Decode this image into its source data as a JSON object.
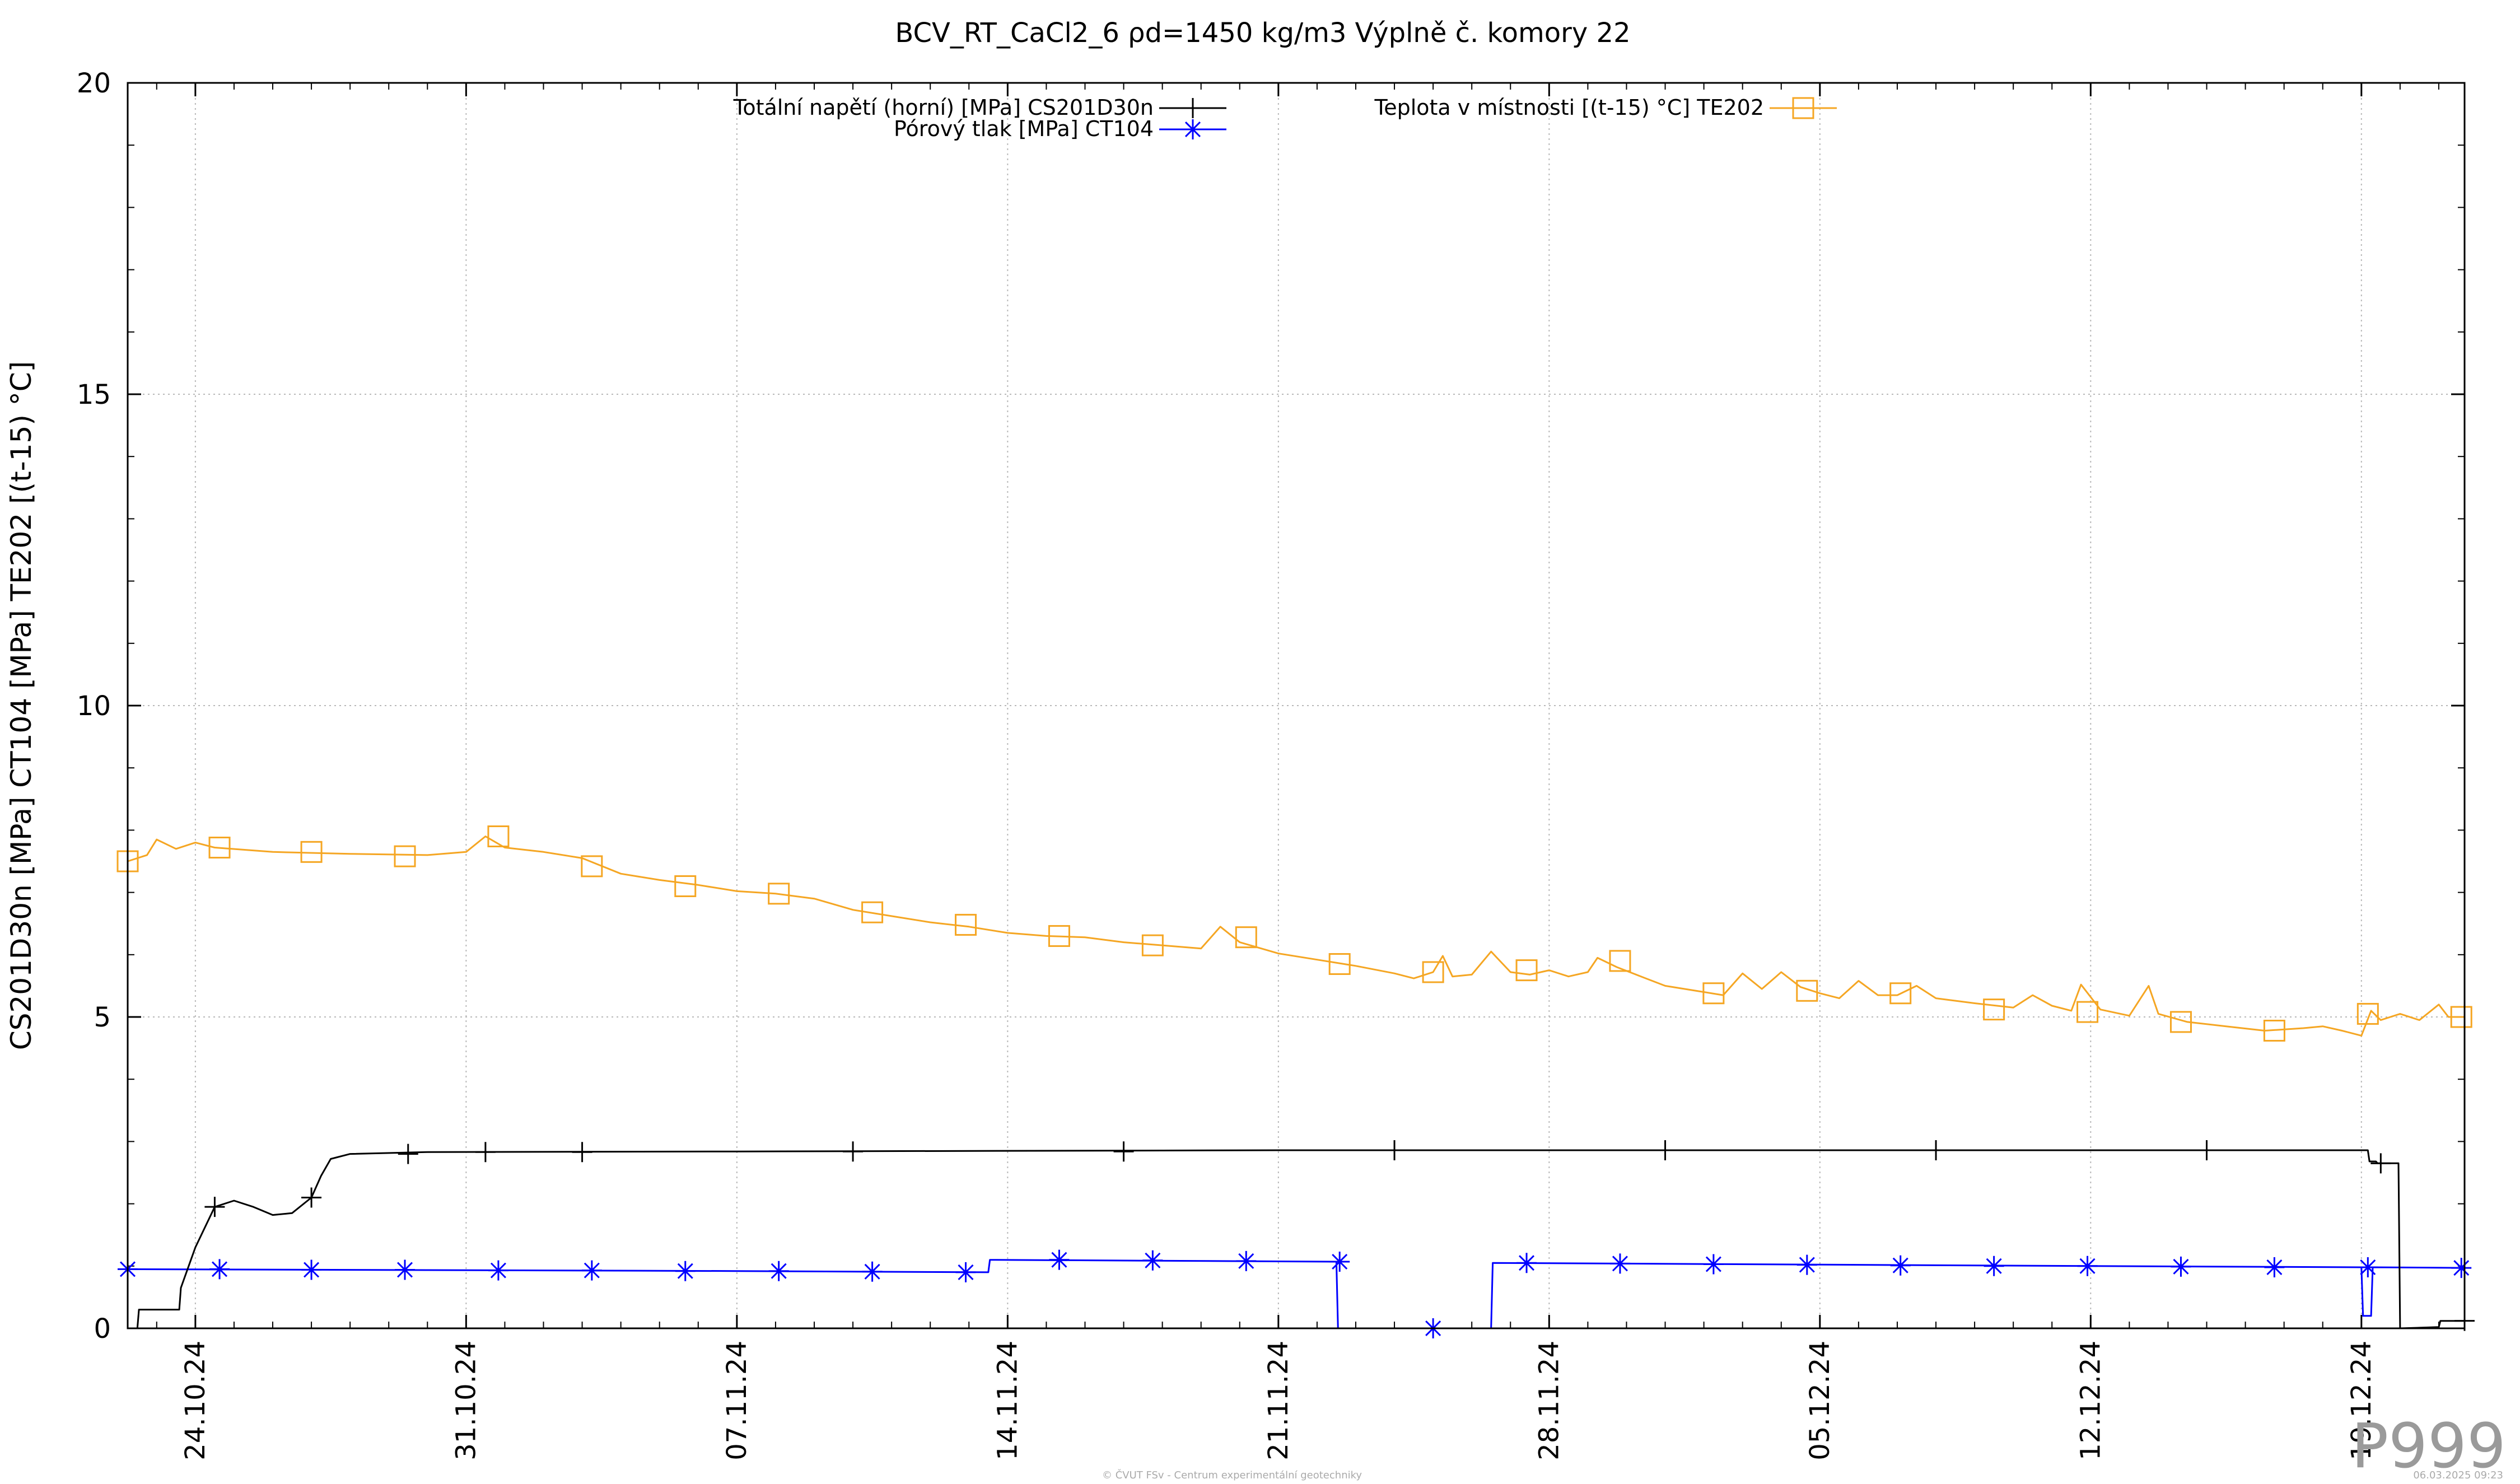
{
  "chart_data": {
    "type": "line",
    "title": "BCV_RT_CaCl2_6 ρd=1450 kg/m3 Výplně č. komory 22",
    "ylabel": "CS201D30n [MPa] CT104 [MPa] TE202 [(t-15) °C]",
    "xlabel": "",
    "ylim": [
      0,
      20
    ],
    "y_ticks": [
      0,
      5,
      10,
      15,
      20
    ],
    "x_range": [
      "2024-10-22T06:00",
      "2024-12-21T16:00"
    ],
    "x_ticks": [
      "24.10.24",
      "31.10.24",
      "07.11.24",
      "14.11.24",
      "21.11.24",
      "28.11.24",
      "05.12.24",
      "12.12.24",
      "19.12.24"
    ],
    "x_tick_dates": [
      "2024-10-24",
      "2024-10-31",
      "2024-11-07",
      "2024-11-14",
      "2024-11-21",
      "2024-11-28",
      "2024-12-05",
      "2024-12-12",
      "2024-12-19"
    ],
    "grid": true,
    "legend_position": "top",
    "series": [
      {
        "name": "Totální napětí (horní) [MPa] CS201D30n",
        "color": "#000000",
        "marker": "plus",
        "points": [
          [
            "2024-10-22T06:00",
            0.0
          ],
          [
            "2024-10-22T12:00",
            0.0
          ],
          [
            "2024-10-22T13:00",
            0.3
          ],
          [
            "2024-10-23T14:00",
            0.3
          ],
          [
            "2024-10-23T15:00",
            0.65
          ],
          [
            "2024-10-24T00:00",
            1.3
          ],
          [
            "2024-10-24T12:00",
            1.95
          ],
          [
            "2024-10-25T00:00",
            2.05
          ],
          [
            "2024-10-25T12:00",
            1.95
          ],
          [
            "2024-10-26T00:00",
            1.82
          ],
          [
            "2024-10-26T12:00",
            1.85
          ],
          [
            "2024-10-27T00:00",
            2.1
          ],
          [
            "2024-10-27T06:00",
            2.45
          ],
          [
            "2024-10-27T12:00",
            2.72
          ],
          [
            "2024-10-28T00:00",
            2.8
          ],
          [
            "2024-10-30T00:00",
            2.83
          ],
          [
            "2024-11-07T00:00",
            2.84
          ],
          [
            "2024-11-21T00:00",
            2.86
          ],
          [
            "2024-11-28T00:00",
            2.86
          ],
          [
            "2024-12-12T00:00",
            2.86
          ],
          [
            "2024-12-19T04:00",
            2.86
          ],
          [
            "2024-12-19T05:00",
            2.68
          ],
          [
            "2024-12-19T09:00",
            2.68
          ],
          [
            "2024-12-19T10:00",
            2.65
          ],
          [
            "2024-12-19T23:00",
            2.65
          ],
          [
            "2024-12-20T00:00",
            0.0
          ],
          [
            "2024-12-21T00:00",
            0.02
          ],
          [
            "2024-12-21T01:00",
            0.12
          ],
          [
            "2024-12-21T16:00",
            0.12
          ]
        ],
        "marker_dates": [
          "2024-10-24T12:00",
          "2024-10-27T00:00",
          "2024-10-29T12:00",
          "2024-10-31T12:00",
          "2024-11-03T00:00",
          "2024-11-10T00:00",
          "2024-11-17T00:00",
          "2024-11-24T00:00",
          "2024-12-01T00:00",
          "2024-12-08T00:00",
          "2024-12-15T00:00",
          "2024-12-19T12:00",
          "2024-12-21T16:00"
        ]
      },
      {
        "name": "Pórový tlak [MPa] CT104",
        "color": "#0000ff",
        "marker": "star",
        "points": [
          [
            "2024-10-22T06:00",
            0.95
          ],
          [
            "2024-11-07T00:00",
            0.92
          ],
          [
            "2024-11-13T12:00",
            0.9
          ],
          [
            "2024-11-13T13:00",
            1.1
          ],
          [
            "2024-11-22T12:00",
            1.07
          ],
          [
            "2024-11-22T13:00",
            0.0
          ],
          [
            "2024-11-26T12:00",
            0.0
          ],
          [
            "2024-11-26T13:00",
            1.05
          ],
          [
            "2024-12-12T00:00",
            1.0
          ],
          [
            "2024-12-19T00:00",
            0.98
          ],
          [
            "2024-12-19T01:00",
            0.2
          ],
          [
            "2024-12-19T06:00",
            0.2
          ],
          [
            "2024-12-19T07:00",
            0.98
          ],
          [
            "2024-12-21T16:00",
            0.97
          ]
        ],
        "markers": [
          [
            "2024-10-22T06:00",
            0.95
          ],
          [
            "2024-10-24T15:00",
            0.95
          ],
          [
            "2024-10-27T00:00",
            0.94
          ],
          [
            "2024-10-29T10:00",
            0.94
          ],
          [
            "2024-10-31T20:00",
            0.93
          ],
          [
            "2024-11-03T06:00",
            0.93
          ],
          [
            "2024-11-05T16:00",
            0.92
          ],
          [
            "2024-11-08T02:00",
            0.92
          ],
          [
            "2024-11-10T12:00",
            0.91
          ],
          [
            "2024-11-12T22:00",
            0.9
          ],
          [
            "2024-11-15T08:00",
            1.1
          ],
          [
            "2024-11-17T18:00",
            1.09
          ],
          [
            "2024-11-20T04:00",
            1.08
          ],
          [
            "2024-11-22T14:00",
            1.07
          ],
          [
            "2024-11-25T00:00",
            0.0
          ],
          [
            "2024-11-27T10:00",
            1.05
          ],
          [
            "2024-11-29T20:00",
            1.04
          ],
          [
            "2024-12-02T06:00",
            1.03
          ],
          [
            "2024-12-04T16:00",
            1.02
          ],
          [
            "2024-12-07T02:00",
            1.01
          ],
          [
            "2024-12-09T12:00",
            1.0
          ],
          [
            "2024-12-11T22:00",
            1.0
          ],
          [
            "2024-12-14T08:00",
            0.99
          ],
          [
            "2024-12-16T18:00",
            0.98
          ],
          [
            "2024-12-19T04:00",
            0.98
          ],
          [
            "2024-12-21T14:00",
            0.97
          ]
        ]
      },
      {
        "name": "Teplota v místnosti [(t-15) °C] TE202",
        "color": "#f5a623",
        "marker": "square",
        "points": [
          [
            "2024-10-22T06:00",
            7.5
          ],
          [
            "2024-10-22T18:00",
            7.6
          ],
          [
            "2024-10-23T00:00",
            7.85
          ],
          [
            "2024-10-23T12:00",
            7.7
          ],
          [
            "2024-10-24T00:00",
            7.8
          ],
          [
            "2024-10-24T12:00",
            7.72
          ],
          [
            "2024-10-26T00:00",
            7.65
          ],
          [
            "2024-10-28T00:00",
            7.62
          ],
          [
            "2024-10-30T00:00",
            7.6
          ],
          [
            "2024-10-31T00:00",
            7.65
          ],
          [
            "2024-10-31T12:00",
            7.9
          ],
          [
            "2024-11-01T00:00",
            7.72
          ],
          [
            "2024-11-02T00:00",
            7.65
          ],
          [
            "2024-11-03T00:00",
            7.55
          ],
          [
            "2024-11-04T00:00",
            7.3
          ],
          [
            "2024-11-05T00:00",
            7.2
          ],
          [
            "2024-11-06T00:00",
            7.12
          ],
          [
            "2024-11-07T00:00",
            7.02
          ],
          [
            "2024-11-08T00:00",
            6.98
          ],
          [
            "2024-11-09T00:00",
            6.9
          ],
          [
            "2024-11-10T00:00",
            6.72
          ],
          [
            "2024-11-11T00:00",
            6.62
          ],
          [
            "2024-11-12T00:00",
            6.52
          ],
          [
            "2024-11-13T00:00",
            6.45
          ],
          [
            "2024-11-14T00:00",
            6.35
          ],
          [
            "2024-11-15T00:00",
            6.3
          ],
          [
            "2024-11-16T00:00",
            6.28
          ],
          [
            "2024-11-17T00:00",
            6.2
          ],
          [
            "2024-11-18T00:00",
            6.15
          ],
          [
            "2024-11-19T00:00",
            6.1
          ],
          [
            "2024-11-19T12:00",
            6.45
          ],
          [
            "2024-11-20T00:00",
            6.2
          ],
          [
            "2024-11-21T00:00",
            6.02
          ],
          [
            "2024-11-22T00:00",
            5.92
          ],
          [
            "2024-11-23T00:00",
            5.82
          ],
          [
            "2024-11-24T00:00",
            5.7
          ],
          [
            "2024-11-24T12:00",
            5.62
          ],
          [
            "2024-11-25T00:00",
            5.72
          ],
          [
            "2024-11-25T06:00",
            5.98
          ],
          [
            "2024-11-25T12:00",
            5.65
          ],
          [
            "2024-11-26T00:00",
            5.68
          ],
          [
            "2024-11-26T12:00",
            6.05
          ],
          [
            "2024-11-27T00:00",
            5.72
          ],
          [
            "2024-11-27T12:00",
            5.68
          ],
          [
            "2024-11-28T00:00",
            5.75
          ],
          [
            "2024-11-28T12:00",
            5.65
          ],
          [
            "2024-11-29T00:00",
            5.72
          ],
          [
            "2024-11-29T06:00",
            5.95
          ],
          [
            "2024-11-29T18:00",
            5.8
          ],
          [
            "2024-11-30T12:00",
            5.62
          ],
          [
            "2024-12-01T00:00",
            5.5
          ],
          [
            "2024-12-02T00:00",
            5.4
          ],
          [
            "2024-12-02T12:00",
            5.35
          ],
          [
            "2024-12-03T00:00",
            5.7
          ],
          [
            "2024-12-03T12:00",
            5.45
          ],
          [
            "2024-12-04T00:00",
            5.72
          ],
          [
            "2024-12-04T12:00",
            5.48
          ],
          [
            "2024-12-05T00:00",
            5.38
          ],
          [
            "2024-12-05T12:00",
            5.3
          ],
          [
            "2024-12-06T00:00",
            5.58
          ],
          [
            "2024-12-06T12:00",
            5.35
          ],
          [
            "2024-12-07T00:00",
            5.35
          ],
          [
            "2024-12-07T12:00",
            5.5
          ],
          [
            "2024-12-08T00:00",
            5.3
          ],
          [
            "2024-12-09T00:00",
            5.22
          ],
          [
            "2024-12-10T00:00",
            5.15
          ],
          [
            "2024-12-10T12:00",
            5.35
          ],
          [
            "2024-12-11T00:00",
            5.18
          ],
          [
            "2024-12-11T12:00",
            5.1
          ],
          [
            "2024-12-11T18:00",
            5.52
          ],
          [
            "2024-12-12T06:00",
            5.12
          ],
          [
            "2024-12-13T00:00",
            5.02
          ],
          [
            "2024-12-13T12:00",
            5.5
          ],
          [
            "2024-12-13T18:00",
            5.05
          ],
          [
            "2024-12-14T12:00",
            4.92
          ],
          [
            "2024-12-15T12:00",
            4.85
          ],
          [
            "2024-12-16T12:00",
            4.78
          ],
          [
            "2024-12-17T12:00",
            4.82
          ],
          [
            "2024-12-18T00:00",
            4.85
          ],
          [
            "2024-12-18T12:00",
            4.78
          ],
          [
            "2024-12-19T00:00",
            4.7
          ],
          [
            "2024-12-19T06:00",
            5.1
          ],
          [
            "2024-12-19T12:00",
            4.95
          ],
          [
            "2024-12-20T00:00",
            5.05
          ],
          [
            "2024-12-20T12:00",
            4.95
          ],
          [
            "2024-12-21T00:00",
            5.2
          ],
          [
            "2024-12-21T06:00",
            5.0
          ],
          [
            "2024-12-21T16:00",
            5.0
          ]
        ],
        "markers": [
          [
            "2024-10-22T06:00",
            7.5
          ],
          [
            "2024-10-24T15:00",
            7.72
          ],
          [
            "2024-10-27T00:00",
            7.65
          ],
          [
            "2024-10-29T10:00",
            7.58
          ],
          [
            "2024-10-31T20:00",
            7.9
          ],
          [
            "2024-11-03T06:00",
            7.42
          ],
          [
            "2024-11-05T16:00",
            7.1
          ],
          [
            "2024-11-08T02:00",
            6.98
          ],
          [
            "2024-11-10T12:00",
            6.68
          ],
          [
            "2024-11-12T22:00",
            6.48
          ],
          [
            "2024-11-15T08:00",
            6.3
          ],
          [
            "2024-11-17T18:00",
            6.15
          ],
          [
            "2024-11-20T04:00",
            6.28
          ],
          [
            "2024-11-22T14:00",
            5.85
          ],
          [
            "2024-11-25T00:00",
            5.72
          ],
          [
            "2024-11-27T10:00",
            5.75
          ],
          [
            "2024-11-29T20:00",
            5.9
          ],
          [
            "2024-12-02T06:00",
            5.38
          ],
          [
            "2024-12-04T16:00",
            5.42
          ],
          [
            "2024-12-07T02:00",
            5.38
          ],
          [
            "2024-12-09T12:00",
            5.12
          ],
          [
            "2024-12-11T22:00",
            5.08
          ],
          [
            "2024-12-14T08:00",
            4.92
          ],
          [
            "2024-12-16T18:00",
            4.78
          ],
          [
            "2024-12-19T04:00",
            5.05
          ],
          [
            "2024-12-21T14:00",
            5.0
          ]
        ]
      }
    ]
  },
  "footer_credit": "© ČVUT FSv - Centrum experimentální geotechniky",
  "footer_timestamp": "06.03.2025 09:23",
  "watermark": "P999"
}
